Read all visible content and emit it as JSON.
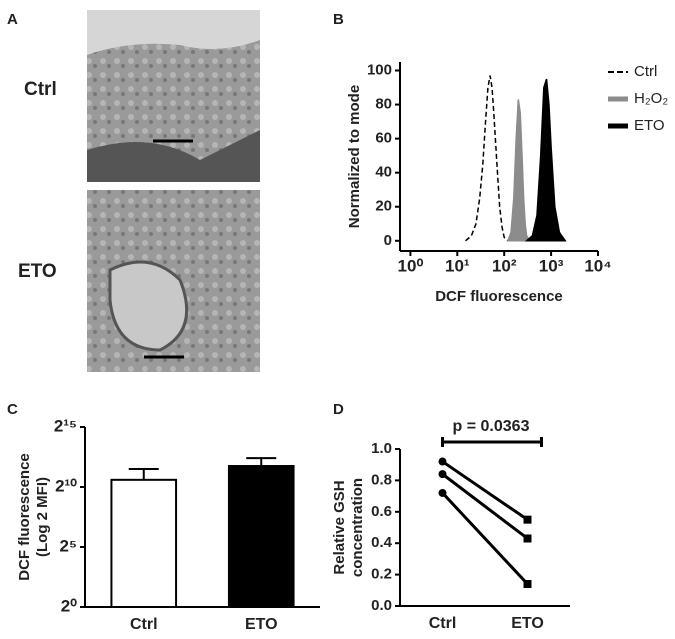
{
  "panel_labels": [
    "A",
    "B",
    "C",
    "D"
  ],
  "micrographs": {
    "labels": [
      "Ctrl",
      "ETO"
    ]
  },
  "chart_data": [
    {
      "type": "area",
      "xlabel": "DCF fluorescence",
      "ylabel": "Normalized to mode",
      "xlog": true,
      "xlim": [
        0.6,
        10000
      ],
      "ylim": [
        -6,
        105
      ],
      "xticks": [
        {
          "value": 1,
          "label": "10⁰"
        },
        {
          "value": 10,
          "label": "10¹"
        },
        {
          "value": 100,
          "label": "10²"
        },
        {
          "value": 1000,
          "label": "10³"
        },
        {
          "value": 10000,
          "label": "10⁴"
        }
      ],
      "yticks": [
        0,
        20,
        40,
        60,
        80,
        100
      ],
      "series": [
        {
          "name": "Ctrl",
          "color": "#000000",
          "dashed": true,
          "filled": false,
          "x": [
            15,
            20,
            25,
            30,
            35,
            40,
            45,
            50,
            55,
            60,
            70,
            80,
            90,
            100,
            120
          ],
          "values": [
            0,
            3,
            10,
            25,
            45,
            70,
            90,
            97,
            90,
            75,
            45,
            20,
            8,
            2,
            0
          ]
        },
        {
          "name": "H₂O₂",
          "color": "#8c8c8c",
          "dashed": false,
          "filled": true,
          "x": [
            120,
            140,
            160,
            180,
            200,
            220,
            240,
            260,
            280,
            300,
            350
          ],
          "values": [
            0,
            5,
            25,
            60,
            83,
            75,
            50,
            25,
            10,
            3,
            0
          ]
        },
        {
          "name": "ETO",
          "color": "#000000",
          "dashed": false,
          "filled": true,
          "x": [
            300,
            400,
            500,
            600,
            700,
            800,
            900,
            1000,
            1200,
            1500,
            2000
          ],
          "values": [
            0,
            3,
            15,
            50,
            90,
            95,
            80,
            55,
            20,
            5,
            0
          ]
        }
      ]
    },
    {
      "type": "bar",
      "ylabel": "DCF fluorescence",
      "ylabel2": "(Log 2 MFI)",
      "ylog": true,
      "ylim": [
        1,
        32768
      ],
      "yticks": [
        {
          "value": 1,
          "label": "2⁰"
        },
        {
          "value": 32,
          "label": "2⁵"
        },
        {
          "value": 1024,
          "label": "2¹⁰"
        },
        {
          "value": 32768,
          "label": "2¹⁵"
        }
      ],
      "categories": [
        "Ctrl",
        "ETO"
      ],
      "values": [
        1550,
        3440
      ],
      "errors": [
        1350,
        2000
      ],
      "colors": [
        "#ffffff",
        "#000000"
      ]
    },
    {
      "type": "line",
      "ylabel": "Relative GSH",
      "ylabel2": "concentration",
      "ylim": [
        0,
        1.0
      ],
      "yticks": [
        {
          "value": 0,
          "label": "0.0"
        },
        0.2,
        0.4,
        0.6,
        0.8,
        {
          "value": 1.0,
          "label": "1.0"
        }
      ],
      "categories": [
        "Ctrl",
        "ETO"
      ],
      "annotation": "p = 0.0363",
      "series": [
        {
          "color": "#000000",
          "values": [
            0.92,
            0.55
          ]
        },
        {
          "color": "#000000",
          "values": [
            0.84,
            0.43
          ]
        },
        {
          "color": "#000000",
          "values": [
            0.72,
            0.14
          ]
        }
      ]
    }
  ]
}
